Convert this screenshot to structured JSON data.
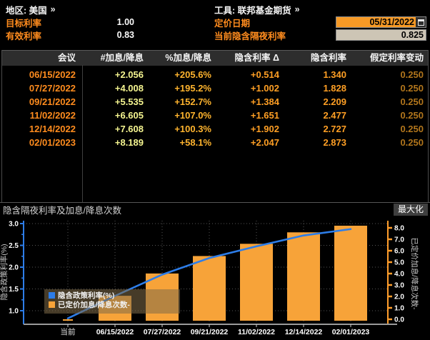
{
  "header": {
    "region_label": "地区: 美国",
    "region_arrow": "»",
    "tool_label": "工具: 联邦基金期货",
    "tool_arrow": "»",
    "target_rate_label": "目标利率",
    "target_rate_value": "1.00",
    "effective_rate_label": "有效利率",
    "effective_rate_value": "0.83",
    "pricing_date_label": "定价日期",
    "pricing_date_value": "05/31/2022",
    "implied_overnight_label": "当前隐含隔夜利率",
    "implied_overnight_value": "0.825"
  },
  "table": {
    "columns": [
      "会议",
      "#加息/降息",
      "%加息/降息",
      "隐含利率 Δ",
      "隐含利率",
      "假定利率变动"
    ],
    "rows": [
      [
        "06/15/2022",
        "+2.056",
        "+205.6%",
        "+0.514",
        "1.340",
        "0.250"
      ],
      [
        "07/27/2022",
        "+4.008",
        "+195.2%",
        "+1.002",
        "1.828",
        "0.250"
      ],
      [
        "09/21/2022",
        "+5.535",
        "+152.7%",
        "+1.384",
        "2.209",
        "0.250"
      ],
      [
        "11/02/2022",
        "+6.605",
        "+107.0%",
        "+1.651",
        "2.477",
        "0.250"
      ],
      [
        "12/14/2022",
        "+7.608",
        "+100.3%",
        "+1.902",
        "2.727",
        "0.250"
      ],
      [
        "02/01/2023",
        "+8.189",
        "+58.1%",
        "+2.047",
        "2.873",
        "0.250"
      ]
    ]
  },
  "chart": {
    "title": "隐含隔夜利率及加息/降息次数",
    "maximize_label": "最大化"
  },
  "chart_data": {
    "type": "bar",
    "title": "隐含隔夜利率及加息/降息次数",
    "categories": [
      "当前",
      "06/15/2022",
      "07/27/2022",
      "09/21/2022",
      "11/02/2022",
      "12/14/2022",
      "02/01/2023"
    ],
    "series": [
      {
        "name": "隐含政策利率(%)",
        "kind": "line",
        "axis": "left",
        "color": "#2d7de8",
        "values": [
          0.825,
          1.34,
          1.828,
          2.209,
          2.477,
          2.727,
          2.873
        ]
      },
      {
        "name": "已定价加息/降息次数-",
        "kind": "bar",
        "axis": "right",
        "color": "#f7a339",
        "values": [
          0,
          2.056,
          4.008,
          5.535,
          6.605,
          7.608,
          8.189
        ]
      }
    ],
    "left_axis": {
      "label": "隐含政策利率(%)",
      "ticks": [
        1.0,
        1.5,
        2.0,
        2.5,
        3.0
      ],
      "color": "#2d7de8"
    },
    "right_axis": {
      "label": "已定价加息/降息次数-",
      "ticks": [
        0.0,
        1.0,
        2.0,
        3.0,
        4.0,
        5.0,
        6.0,
        7.0,
        8.0
      ],
      "color": "#ff9d2b"
    },
    "grid": "dotted",
    "legend_position": "bottom-left",
    "current_category_color": "#999999",
    "tick_label_color": "#ffffff"
  }
}
